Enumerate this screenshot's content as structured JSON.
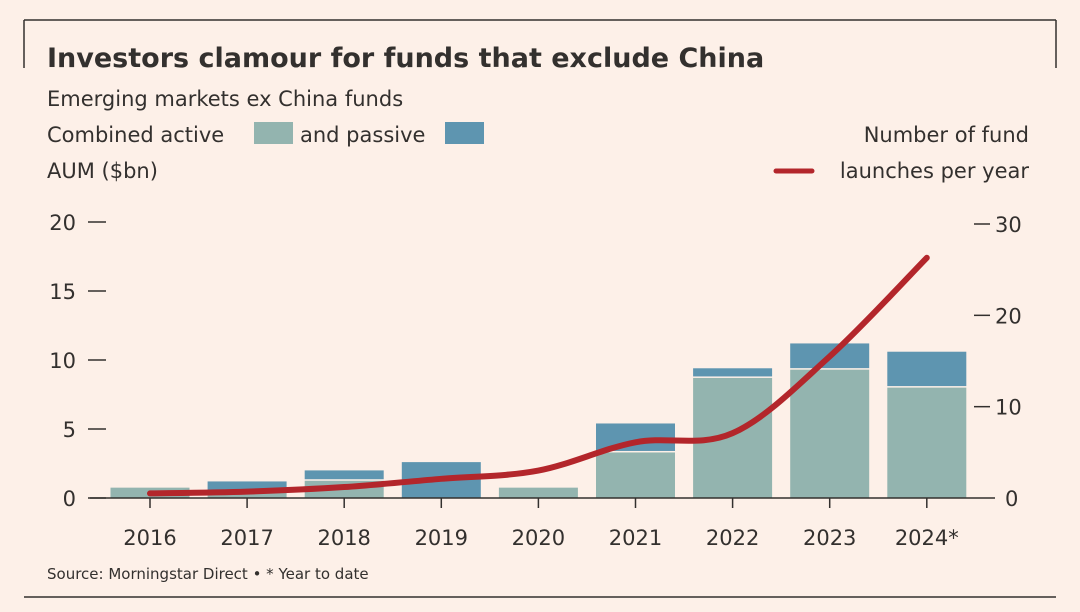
{
  "chart_data": {
    "type": "bar",
    "title": "Investors clamour for funds that exclude China",
    "subtitle": "Emerging markets ex China funds",
    "legend": {
      "left_line1_a": "Combined active",
      "left_line1_b": "and passive",
      "left_line2": "AUM ($bn)",
      "right_line1": "Number of fund",
      "right_line2": "launches per year"
    },
    "categories": [
      "2016",
      "2017",
      "2018",
      "2019",
      "2020",
      "2021",
      "2022",
      "2023",
      "2024*"
    ],
    "series": [
      {
        "name": "active",
        "kind": "stacked-bar",
        "axis": "left",
        "color": "#93b4af",
        "values": [
          0.75,
          0.4,
          1.25,
          0.0,
          0.75,
          3.3,
          8.7,
          9.3,
          8.0
        ]
      },
      {
        "name": "passive",
        "kind": "stacked-bar",
        "axis": "left",
        "color": "#5e95b0",
        "values": [
          0.0,
          0.8,
          0.75,
          2.6,
          0.0,
          2.1,
          0.7,
          1.9,
          2.6
        ]
      },
      {
        "name": "launches per year",
        "kind": "line",
        "axis": "right",
        "color": "#b3262b",
        "values": [
          0.5,
          0.7,
          1.2,
          2.1,
          3.0,
          6.1,
          7.1,
          15.5,
          26.3
        ]
      }
    ],
    "y_left": {
      "ylim": [
        0,
        20
      ],
      "ticks": [
        "0",
        "5",
        "10",
        "15",
        "20"
      ]
    },
    "y_right": {
      "ylim": [
        0,
        30
      ],
      "ticks": [
        "0",
        "10",
        "20",
        "30"
      ]
    },
    "grid": false,
    "source": "Source: Morningstar Direct • * Year to date"
  }
}
